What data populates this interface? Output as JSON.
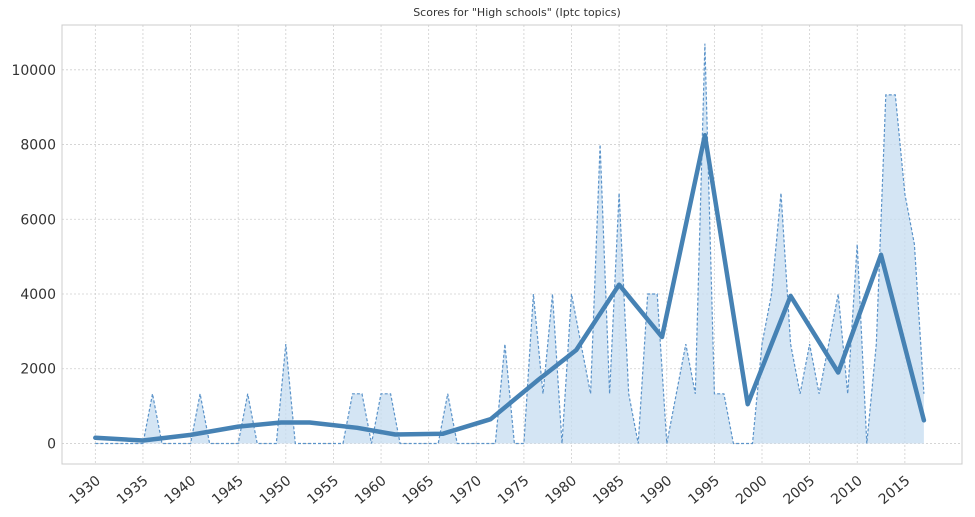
{
  "chart_data": {
    "type": "line",
    "title": "Scores for \"High schools\" (Iptc topics)",
    "xlabel": "",
    "ylabel": "",
    "xlim": [
      1926.5,
      2021
    ],
    "ylim": [
      -550,
      11200
    ],
    "xticks": [
      1930,
      1935,
      1940,
      1945,
      1950,
      1955,
      1960,
      1965,
      1970,
      1975,
      1980,
      1985,
      1990,
      1995,
      2000,
      2005,
      2010,
      2015
    ],
    "yticks": [
      0,
      2000,
      4000,
      6000,
      8000,
      10000
    ],
    "grid": true,
    "legend": "none",
    "colors": {
      "line": "#4682b4",
      "fill": "#c6dcf0",
      "raw": "#5b93c9",
      "grid": "#cfcfcf",
      "frame": "#cccccc"
    },
    "series": [
      {
        "style": "dashed-raw",
        "points": [
          [
            1930,
            0
          ],
          [
            1931,
            0
          ],
          [
            1932,
            0
          ],
          [
            1933,
            0
          ],
          [
            1934,
            0
          ],
          [
            1935,
            0
          ],
          [
            1936,
            1330
          ],
          [
            1937,
            0
          ],
          [
            1938,
            0
          ],
          [
            1939,
            0
          ],
          [
            1940,
            0
          ],
          [
            1941,
            1330
          ],
          [
            1942,
            0
          ],
          [
            1943,
            0
          ],
          [
            1944,
            0
          ],
          [
            1945,
            0
          ],
          [
            1946,
            1330
          ],
          [
            1947,
            0
          ],
          [
            1948,
            0
          ],
          [
            1949,
            0
          ],
          [
            1950,
            2660
          ],
          [
            1951,
            0
          ],
          [
            1952,
            0
          ],
          [
            1953,
            0
          ],
          [
            1954,
            0
          ],
          [
            1955,
            0
          ],
          [
            1956,
            0
          ],
          [
            1957,
            1330
          ],
          [
            1958,
            1330
          ],
          [
            1959,
            0
          ],
          [
            1960,
            1330
          ],
          [
            1961,
            1330
          ],
          [
            1962,
            0
          ],
          [
            1963,
            0
          ],
          [
            1964,
            0
          ],
          [
            1965,
            0
          ],
          [
            1966,
            0
          ],
          [
            1967,
            1330
          ],
          [
            1968,
            0
          ],
          [
            1969,
            0
          ],
          [
            1970,
            0
          ],
          [
            1971,
            0
          ],
          [
            1972,
            0
          ],
          [
            1973,
            2660
          ],
          [
            1974,
            0
          ],
          [
            1975,
            0
          ],
          [
            1976,
            4000
          ],
          [
            1977,
            1330
          ],
          [
            1978,
            4000
          ],
          [
            1979,
            0
          ],
          [
            1980,
            4000
          ],
          [
            1981,
            2660
          ],
          [
            1982,
            1330
          ],
          [
            1983,
            8000
          ],
          [
            1984,
            1330
          ],
          [
            1985,
            6700
          ],
          [
            1986,
            1330
          ],
          [
            1987,
            0
          ],
          [
            1988,
            4000
          ],
          [
            1989,
            4000
          ],
          [
            1990,
            0
          ],
          [
            1991,
            1330
          ],
          [
            1992,
            2660
          ],
          [
            1993,
            1330
          ],
          [
            1994,
            10700
          ],
          [
            1995,
            1330
          ],
          [
            1996,
            1330
          ],
          [
            1997,
            0
          ],
          [
            1998,
            0
          ],
          [
            1999,
            0
          ],
          [
            2000,
            2660
          ],
          [
            2001,
            4000
          ],
          [
            2002,
            6700
          ],
          [
            2003,
            2660
          ],
          [
            2004,
            1330
          ],
          [
            2005,
            2660
          ],
          [
            2006,
            1330
          ],
          [
            2007,
            2660
          ],
          [
            2008,
            4000
          ],
          [
            2009,
            1330
          ],
          [
            2010,
            5330
          ],
          [
            2011,
            0
          ],
          [
            2012,
            2660
          ],
          [
            2013,
            9330
          ],
          [
            2014,
            9330
          ],
          [
            2015,
            6670
          ],
          [
            2016,
            5330
          ],
          [
            2017,
            1330
          ]
        ]
      },
      {
        "style": "smoothed",
        "points": [
          [
            1930,
            150
          ],
          [
            1935,
            80
          ],
          [
            1940,
            230
          ],
          [
            1945,
            450
          ],
          [
            1949.5,
            560
          ],
          [
            1952.5,
            560
          ],
          [
            1957.5,
            420
          ],
          [
            1961.5,
            240
          ],
          [
            1966.5,
            260
          ],
          [
            1971.5,
            650
          ],
          [
            1976.5,
            1700
          ],
          [
            1980.5,
            2500
          ],
          [
            1985,
            4250
          ],
          [
            1989.5,
            2850
          ],
          [
            1994,
            8250
          ],
          [
            1998.5,
            1050
          ],
          [
            2003,
            3950
          ],
          [
            2008,
            1900
          ],
          [
            2012.5,
            5050
          ],
          [
            2017,
            620
          ]
        ]
      }
    ]
  }
}
